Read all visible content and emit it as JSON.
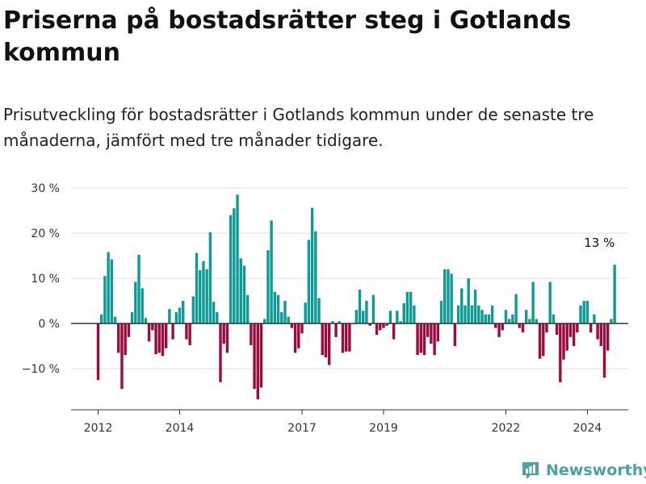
{
  "brand": {
    "name": "Newsworthy",
    "accent": "#4aa3a3"
  },
  "chart_data": {
    "type": "bar",
    "title": "Priserna på bostadsrätter steg i Gotlands kommun",
    "subtitle": "Prisutveckling för bostadsrätter i Gotlands kommun under de senaste tre månaderna, jämfört med tre månader tidigare.",
    "xlabel": "",
    "ylabel": "",
    "ylim": [
      -19,
      32
    ],
    "x_start": "2012-01",
    "x_end": "2024-05",
    "x_ticks": [
      {
        "x": "2012-01",
        "label": "2012"
      },
      {
        "x": "2014-01",
        "label": "2014"
      },
      {
        "x": "2017-01",
        "label": "2017"
      },
      {
        "x": "2019-01",
        "label": "2019"
      },
      {
        "x": "2022-01",
        "label": "2022"
      },
      {
        "x": "2024-01",
        "label": "2024"
      }
    ],
    "y_ticks": [
      {
        "value": 30,
        "label": "30 %"
      },
      {
        "value": 20,
        "label": "20 %"
      },
      {
        "value": 10,
        "label": "10 %"
      },
      {
        "value": 0,
        "label": "0 %"
      },
      {
        "value": -10,
        "label": "−10 %"
      }
    ],
    "grid": true,
    "colors": {
      "positive": "#0e9a95",
      "negative": "#9a0b3e"
    },
    "annotations": [
      {
        "x": "2024-05",
        "value": 13,
        "label": "13 %"
      }
    ],
    "values": [
      -12.5,
      2,
      10.5,
      15.8,
      14.2,
      1.5,
      -6.5,
      -14.5,
      -7,
      -3,
      2.5,
      9.2,
      15.2,
      7.8,
      1.2,
      -4,
      -1.5,
      -6.8,
      -6.5,
      -7.2,
      -5.5,
      3.2,
      -3.5,
      2.5,
      3.5,
      5,
      -3.5,
      -4.8,
      6,
      15.6,
      11.8,
      13.8,
      12,
      20.2,
      4.8,
      2.5,
      -13,
      -4.5,
      -6.5,
      24,
      25.5,
      28.5,
      14.4,
      12.8,
      6.3,
      -4.8,
      -14.5,
      -16.8,
      -14.2,
      1,
      16.2,
      22.8,
      7,
      6.3,
      2.5,
      5,
      1.5,
      -1,
      -6.5,
      -5.5,
      -2.2,
      4.6,
      18.5,
      25.6,
      20.4,
      5.6,
      -7,
      -7.5,
      -9.2,
      0.5,
      -3,
      0.5,
      -6.5,
      -6.2,
      -6.2,
      0,
      3,
      7.5,
      2.8,
      5,
      -0.5,
      6.3,
      -2.5,
      -1.5,
      -1,
      -0.5,
      2.8,
      -3.5,
      2.8,
      0.5,
      4.5,
      7,
      7,
      4,
      -7,
      -6.5,
      -7,
      -3,
      -4.5,
      -7,
      -4,
      5,
      12,
      12,
      11,
      -5,
      4,
      7.8,
      4,
      10,
      4,
      7.5,
      4,
      3,
      2,
      2,
      4,
      -1,
      -3,
      -1.5,
      3,
      1,
      2,
      6.5,
      -1,
      -2,
      3,
      1,
      9.2,
      1,
      -7.8,
      -7.2,
      -2,
      9.2,
      2,
      -2.5,
      -13,
      -8,
      -6,
      -3,
      -5,
      -2,
      4,
      5,
      5,
      -2,
      2,
      -3.5,
      -5,
      -12,
      -6,
      1,
      13
    ]
  }
}
